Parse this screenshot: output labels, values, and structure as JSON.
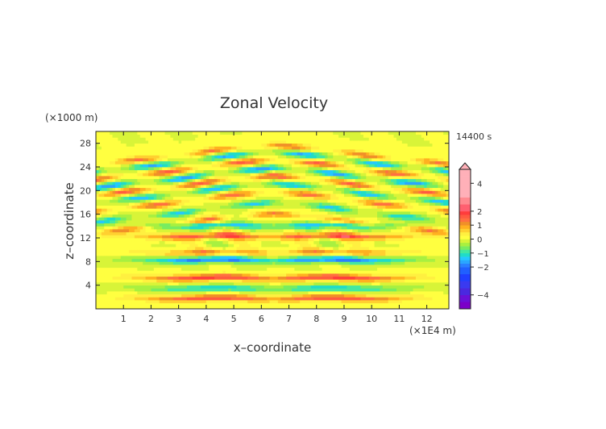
{
  "chart_data": {
    "type": "heatmap",
    "title": "Zonal Velocity",
    "xlabel": "x–coordinate",
    "ylabel": "z–coordinate",
    "x_unit": "(×1E4 m)",
    "y_unit": "(×1000 m)",
    "time_label": "14400 s",
    "xlim": [
      0,
      12.8
    ],
    "ylim": [
      0,
      30
    ],
    "x_ticks": [
      "1",
      "2",
      "3",
      "4",
      "5",
      "6",
      "7",
      "8",
      "9",
      "10",
      "11",
      "12"
    ],
    "y_ticks": [
      "4",
      "8",
      "12",
      "16",
      "20",
      "24",
      "28"
    ],
    "colorbar": {
      "levels": [
        -5.0,
        -4.5,
        -4.0,
        -3.5,
        -3.0,
        -2.5,
        -2.0,
        -1.75,
        -1.5,
        -1.25,
        -1.0,
        -0.75,
        -0.5,
        -0.25,
        0.0,
        0.25,
        0.5,
        0.75,
        1.0,
        1.25,
        1.5,
        1.75,
        2.0,
        2.5,
        3.0,
        3.5,
        4.0,
        4.5,
        5.0
      ],
      "tick_labels": [
        "4",
        "2",
        "1",
        "0",
        "−1",
        "−2",
        "−4"
      ],
      "tick_values": [
        4,
        2,
        1,
        0,
        -1,
        -2,
        -4
      ],
      "colors": [
        "#7b00c8",
        "#6a10d8",
        "#4a28e0",
        "#3a3af0",
        "#2040ff",
        "#2060ff",
        "#2a7fff",
        "#2aa6ff",
        "#24c8ff",
        "#20dcc8",
        "#44e8a0",
        "#78ec60",
        "#a8f040",
        "#d8f438",
        "#ffff40",
        "#fff040",
        "#ffd030",
        "#ffb020",
        "#f09028",
        "#ff7040",
        "#ff5a40",
        "#ff3c3c",
        "#ff6070",
        "#ff8a90",
        "#ffb0b8"
      ]
    },
    "bands": [
      {
        "z": 1.8,
        "sign": 1,
        "amp": 1.0
      },
      {
        "z": 3.5,
        "sign": -1,
        "amp": 0.7
      },
      {
        "z": 5.3,
        "sign": 1,
        "amp": 1.1
      },
      {
        "z": 8.3,
        "sign": -1,
        "amp": 1.1
      },
      {
        "z": 9.6,
        "sign": 1,
        "amp": 0.6
      },
      {
        "z": 12.3,
        "sign": 1,
        "amp": 1.0
      },
      {
        "z": 14.1,
        "sign": -1,
        "amp": 0.8
      },
      {
        "z": 16.3,
        "sign": 1,
        "amp": 0.9
      },
      {
        "z": 18.2,
        "sign": -1,
        "amp": 0.9
      },
      {
        "z": 20.0,
        "sign": 1,
        "amp": 1.0
      },
      {
        "z": 21.4,
        "sign": -1,
        "amp": 1.0
      },
      {
        "z": 22.7,
        "sign": 1,
        "amp": 1.1
      },
      {
        "z": 24.0,
        "sign": -1,
        "amp": 1.2
      },
      {
        "z": 25.4,
        "sign": 1,
        "amp": 1.1
      },
      {
        "z": 26.7,
        "sign": -1,
        "amp": 1.1
      },
      {
        "z": 27.9,
        "sign": 1,
        "amp": 0.9
      }
    ]
  }
}
